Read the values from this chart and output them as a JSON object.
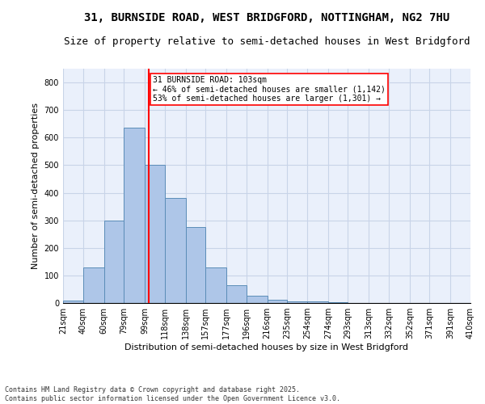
{
  "title1": "31, BURNSIDE ROAD, WEST BRIDGFORD, NOTTINGHAM, NG2 7HU",
  "title2": "Size of property relative to semi-detached houses in West Bridgford",
  "xlabel": "Distribution of semi-detached houses by size in West Bridgford",
  "ylabel": "Number of semi-detached properties",
  "footer1": "Contains HM Land Registry data © Crown copyright and database right 2025.",
  "footer2": "Contains public sector information licensed under the Open Government Licence v3.0.",
  "annotation_line1": "31 BURNSIDE ROAD: 103sqm",
  "annotation_line2": "← 46% of semi-detached houses are smaller (1,142)",
  "annotation_line3": "53% of semi-detached houses are larger (1,301) →",
  "bin_edges": [
    21,
    40,
    60,
    79,
    99,
    118,
    138,
    157,
    177,
    196,
    216,
    235,
    254,
    274,
    293,
    313,
    332,
    352,
    371,
    391,
    410
  ],
  "bin_labels": [
    "21sqm",
    "40sqm",
    "60sqm",
    "79sqm",
    "99sqm",
    "118sqm",
    "138sqm",
    "157sqm",
    "177sqm",
    "196sqm",
    "216sqm",
    "235sqm",
    "254sqm",
    "274sqm",
    "293sqm",
    "313sqm",
    "332sqm",
    "352sqm",
    "371sqm",
    "391sqm",
    "410sqm"
  ],
  "bar_heights": [
    10,
    130,
    300,
    635,
    500,
    380,
    275,
    130,
    65,
    25,
    12,
    5,
    5,
    2,
    1,
    1,
    0,
    0,
    0,
    0
  ],
  "bar_color": "#aec6e8",
  "bar_edge_color": "#5b8db8",
  "vline_x": 103,
  "vline_color": "red",
  "ylim": [
    0,
    850
  ],
  "yticks": [
    0,
    100,
    200,
    300,
    400,
    500,
    600,
    700,
    800
  ],
  "grid_color": "#c8d4e8",
  "bg_color": "#eaf0fb",
  "annotation_box_color": "red",
  "title_fontsize": 10,
  "subtitle_fontsize": 9,
  "axis_label_fontsize": 8,
  "tick_fontsize": 7,
  "ann_fontsize": 7,
  "footer_fontsize": 6
}
